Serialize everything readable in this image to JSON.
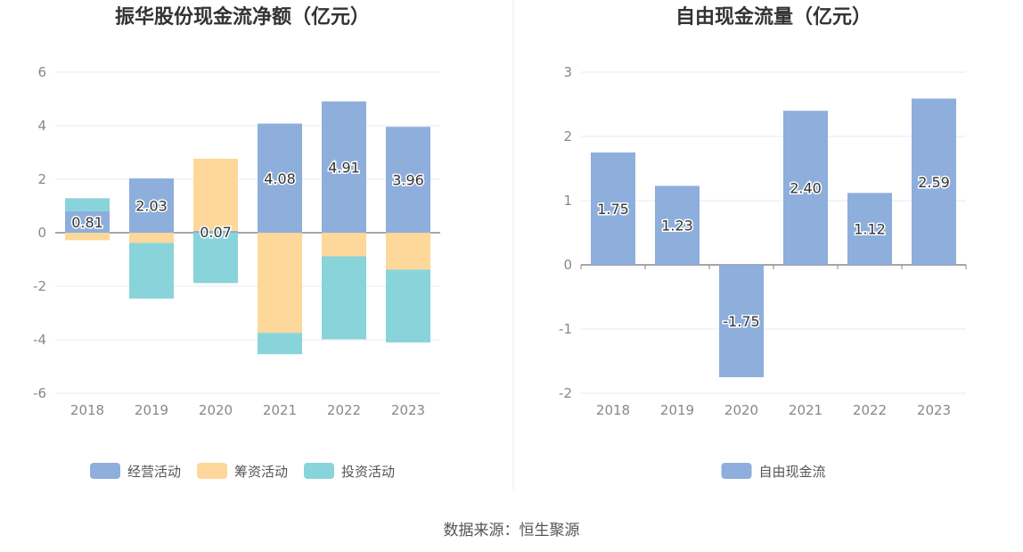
{
  "source_text": "数据来源：恒生聚源",
  "chart_data": [
    {
      "type": "bar",
      "stacked": true,
      "title": "振华股份现金流净额（亿元）",
      "categories": [
        "2018",
        "2019",
        "2020",
        "2021",
        "2022",
        "2023"
      ],
      "ylim": [
        -6,
        6
      ],
      "yticks": [
        6,
        4,
        2,
        0,
        -2,
        -4,
        -6
      ],
      "grid": true,
      "legend": "bottom",
      "series": [
        {
          "name": "经营活动",
          "color": "#8eaedc",
          "values": [
            0.81,
            2.03,
            0.07,
            4.08,
            4.91,
            3.96
          ],
          "labels": [
            "0.81",
            "2.03",
            "0.07",
            "4.08",
            "4.91",
            "3.96"
          ]
        },
        {
          "name": "筹资活动",
          "color": "#fdd89a",
          "values": [
            -0.28,
            -0.38,
            2.7,
            -3.74,
            -0.88,
            -1.38
          ]
        },
        {
          "name": "投资活动",
          "color": "#88d4da",
          "values": [
            0.48,
            -2.08,
            -1.88,
            -0.8,
            -3.1,
            -2.72
          ]
        }
      ]
    },
    {
      "type": "bar",
      "title": "自由现金流量（亿元）",
      "categories": [
        "2018",
        "2019",
        "2020",
        "2021",
        "2022",
        "2023"
      ],
      "ylim": [
        -2,
        3
      ],
      "yticks": [
        3,
        2,
        1,
        0,
        -1,
        -2
      ],
      "grid": true,
      "legend": "bottom",
      "series": [
        {
          "name": "自由现金流",
          "color": "#8eaedc",
          "values": [
            1.75,
            1.23,
            -1.75,
            2.4,
            1.12,
            2.59
          ],
          "labels": [
            "1.75",
            "1.23",
            "-1.75",
            "2.40",
            "1.12",
            "2.59"
          ]
        }
      ]
    }
  ]
}
